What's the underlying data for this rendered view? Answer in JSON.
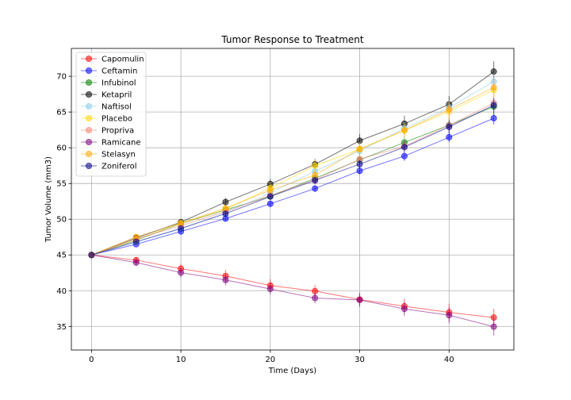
{
  "chart_data": {
    "type": "line",
    "title": "Tumor Response to Treatment",
    "xlabel": "Time (Days)",
    "ylabel": "Tumor Volume (mm3)",
    "xlim": [
      -2.25,
      47.25
    ],
    "ylim": [
      31.7,
      73.9
    ],
    "xticks": [
      0,
      10,
      20,
      30,
      40
    ],
    "yticks": [
      35,
      40,
      45,
      50,
      55,
      60,
      65,
      70
    ],
    "grid": true,
    "legend_position": "top-left",
    "x": [
      0,
      5,
      10,
      15,
      20,
      25,
      30,
      35,
      40,
      45
    ],
    "series": [
      {
        "name": "Capomulin",
        "color": "#ff0000",
        "values": [
          45.0,
          44.27,
          43.08,
          42.06,
          40.72,
          39.94,
          38.77,
          37.82,
          36.96,
          36.24
        ],
        "errors": [
          0,
          0.45,
          0.7,
          0.84,
          0.91,
          0.88,
          0.93,
          1.05,
          1.22,
          1.22
        ]
      },
      {
        "name": "Ceftamin",
        "color": "#0000ff",
        "values": [
          45.0,
          46.5,
          48.29,
          50.09,
          52.16,
          54.29,
          56.77,
          58.83,
          61.47,
          64.13
        ],
        "errors": [
          0,
          0.16,
          0.24,
          0.33,
          0.36,
          0.44,
          0.49,
          0.69,
          0.71,
          0.88
        ]
      },
      {
        "name": "Infubinol",
        "color": "#008000",
        "values": [
          45.0,
          47.06,
          49.4,
          51.3,
          53.2,
          55.72,
          58.3,
          60.74,
          63.16,
          65.76
        ],
        "errors": [
          0,
          0.24,
          0.28,
          0.36,
          0.48,
          0.55,
          0.63,
          0.98,
          1.06,
          1.14
        ]
      },
      {
        "name": "Ketapril",
        "color": "#000000",
        "values": [
          45.0,
          47.39,
          49.58,
          52.4,
          54.92,
          57.68,
          60.99,
          63.37,
          66.07,
          70.66
        ],
        "errors": [
          0,
          0.26,
          0.36,
          0.58,
          0.73,
          0.76,
          0.93,
          1.13,
          1.16,
          1.45
        ]
      },
      {
        "name": "Naftisol",
        "color": "#87ceeb",
        "values": [
          45.0,
          46.8,
          48.69,
          50.93,
          53.64,
          56.73,
          59.56,
          62.69,
          65.6,
          69.27
        ],
        "errors": [
          0,
          0.2,
          0.31,
          0.37,
          0.53,
          0.6,
          0.8,
          0.88,
          1.02,
          1.16
        ]
      },
      {
        "name": "Placebo",
        "color": "#ffd700",
        "values": [
          45.0,
          47.13,
          49.42,
          51.36,
          54.36,
          57.48,
          59.81,
          62.42,
          65.05,
          68.08
        ],
        "errors": [
          0,
          0.22,
          0.4,
          0.61,
          0.84,
          0.88,
          0.93,
          1.0,
          1.15,
          1.35
        ]
      },
      {
        "name": "Propriva",
        "color": "#fa8072",
        "values": [
          45.0,
          47.25,
          49.1,
          51.07,
          53.35,
          55.5,
          58.39,
          60.22,
          63.13,
          66.26
        ],
        "errors": [
          0,
          0.23,
          0.38,
          0.47,
          0.56,
          0.7,
          0.84,
          0.96,
          1.05,
          1.1
        ]
      },
      {
        "name": "Ramicane",
        "color": "#800080",
        "values": [
          45.0,
          43.94,
          42.53,
          41.5,
          40.24,
          38.97,
          38.7,
          37.45,
          36.57,
          34.96
        ],
        "errors": [
          0,
          0.48,
          0.72,
          0.77,
          0.79,
          0.75,
          0.93,
          1.01,
          1.12,
          1.23
        ]
      },
      {
        "name": "Stelasyn",
        "color": "#ffa500",
        "values": [
          45.0,
          47.53,
          49.46,
          51.53,
          54.07,
          56.17,
          59.83,
          62.44,
          65.36,
          68.44
        ],
        "errors": [
          0,
          0.24,
          0.43,
          0.49,
          0.62,
          0.74,
          0.9,
          0.94,
          1.13,
          1.23
        ]
      },
      {
        "name": "Zoniferol",
        "color": "#00008b",
        "values": [
          45.0,
          46.85,
          48.69,
          50.78,
          53.17,
          55.43,
          57.71,
          60.09,
          62.92,
          65.96
        ],
        "errors": [
          0,
          0.19,
          0.26,
          0.36,
          0.44,
          0.49,
          0.59,
          0.76,
          0.89,
          1.0
        ]
      }
    ]
  }
}
